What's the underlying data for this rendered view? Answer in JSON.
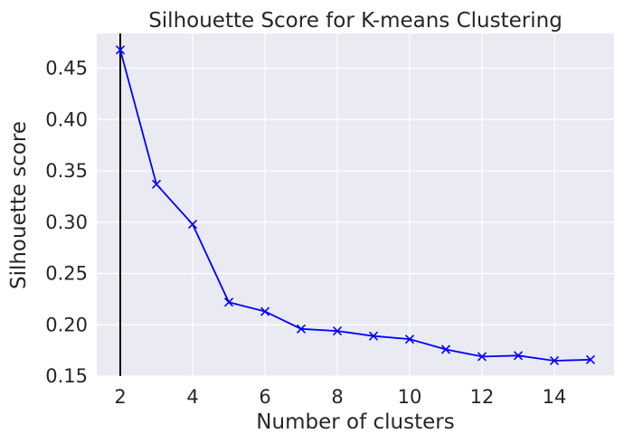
{
  "chart_data": {
    "type": "line",
    "title": "Silhouette Score for K-means Clustering",
    "xlabel": "Number of clusters",
    "ylabel": "Silhouette score",
    "xlim": [
      1.35,
      15.65
    ],
    "ylim": [
      0.15,
      0.484
    ],
    "xticks": [
      2,
      4,
      6,
      8,
      10,
      12,
      14
    ],
    "xtick_labels": [
      "2",
      "4",
      "6",
      "8",
      "10",
      "12",
      "14"
    ],
    "yticks": [
      0.15,
      0.2,
      0.25,
      0.3,
      0.35,
      0.4,
      0.45
    ],
    "ytick_labels": [
      "0.15",
      "0.20",
      "0.25",
      "0.30",
      "0.35",
      "0.40",
      "0.45"
    ],
    "grid": true,
    "vline_x": 2,
    "series": [
      {
        "x": [
          2,
          3,
          4,
          5,
          6,
          7,
          8,
          9,
          10,
          11,
          12,
          13,
          14,
          15
        ],
        "values": [
          0.468,
          0.337,
          0.298,
          0.222,
          0.213,
          0.196,
          0.194,
          0.189,
          0.186,
          0.176,
          0.169,
          0.17,
          0.165,
          0.166
        ],
        "color": "#0000ff",
        "marker": "x"
      }
    ],
    "colors": {
      "plot_background": "#eaeaf2",
      "grid": "#ffffff",
      "vline": "#000000",
      "text": "#262626"
    }
  }
}
